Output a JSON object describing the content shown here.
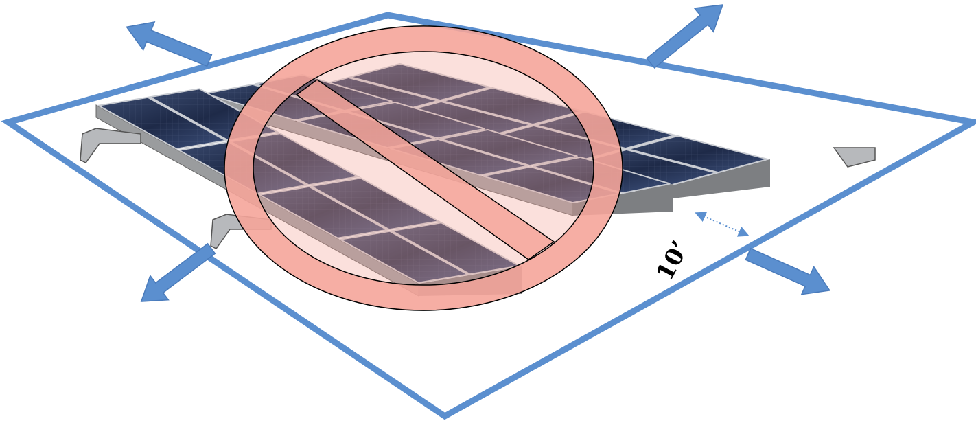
{
  "dimension_label": "10’"
}
